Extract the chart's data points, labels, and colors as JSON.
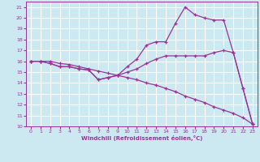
{
  "xlabel": "Windchill (Refroidissement éolien,°C)",
  "bg_color": "#cce8f0",
  "grid_color": "#ffffff",
  "line_color": "#993399",
  "xlim": [
    -0.5,
    23.5
  ],
  "ylim": [
    10,
    21.5
  ],
  "xticks": [
    0,
    1,
    2,
    3,
    4,
    5,
    6,
    7,
    8,
    9,
    10,
    11,
    12,
    13,
    14,
    15,
    16,
    17,
    18,
    19,
    20,
    21,
    22,
    23
  ],
  "yticks": [
    10,
    11,
    12,
    13,
    14,
    15,
    16,
    17,
    18,
    19,
    20,
    21
  ],
  "lines": [
    {
      "x": [
        0,
        1,
        2,
        3,
        4,
        5,
        6,
        7,
        8,
        9,
        10,
        11,
        12,
        13,
        14,
        15,
        16,
        17,
        18,
        19,
        20,
        21,
        22,
        23
      ],
      "y": [
        16,
        16,
        16,
        15.8,
        15.7,
        15.5,
        15.3,
        15.1,
        14.9,
        14.7,
        14.5,
        14.3,
        14.0,
        13.8,
        13.5,
        13.2,
        12.8,
        12.5,
        12.2,
        11.8,
        11.5,
        11.2,
        10.8,
        10.2
      ]
    },
    {
      "x": [
        0,
        1,
        2,
        3,
        4,
        5,
        6,
        7,
        8,
        9,
        10,
        11,
        12,
        13,
        14,
        15,
        16,
        17,
        18,
        19,
        20,
        21,
        22,
        23
      ],
      "y": [
        16,
        16,
        15.8,
        15.5,
        15.5,
        15.3,
        15.2,
        14.3,
        14.5,
        14.7,
        15.0,
        15.3,
        15.8,
        16.2,
        16.5,
        16.5,
        16.5,
        16.5,
        16.5,
        16.8,
        17.0,
        16.8,
        13.5,
        10.2
      ]
    },
    {
      "x": [
        0,
        1,
        2,
        3,
        4,
        5,
        6,
        7,
        8,
        9,
        10,
        11,
        12,
        13,
        14,
        15,
        16,
        17,
        18,
        19,
        20,
        21,
        22,
        23
      ],
      "y": [
        16,
        16,
        15.8,
        15.5,
        15.5,
        15.3,
        15.2,
        14.3,
        14.5,
        14.7,
        15.5,
        16.2,
        17.5,
        17.8,
        17.8,
        19.5,
        21.0,
        20.3,
        20.0,
        19.8,
        19.8,
        16.8,
        13.5,
        10.2
      ]
    }
  ]
}
